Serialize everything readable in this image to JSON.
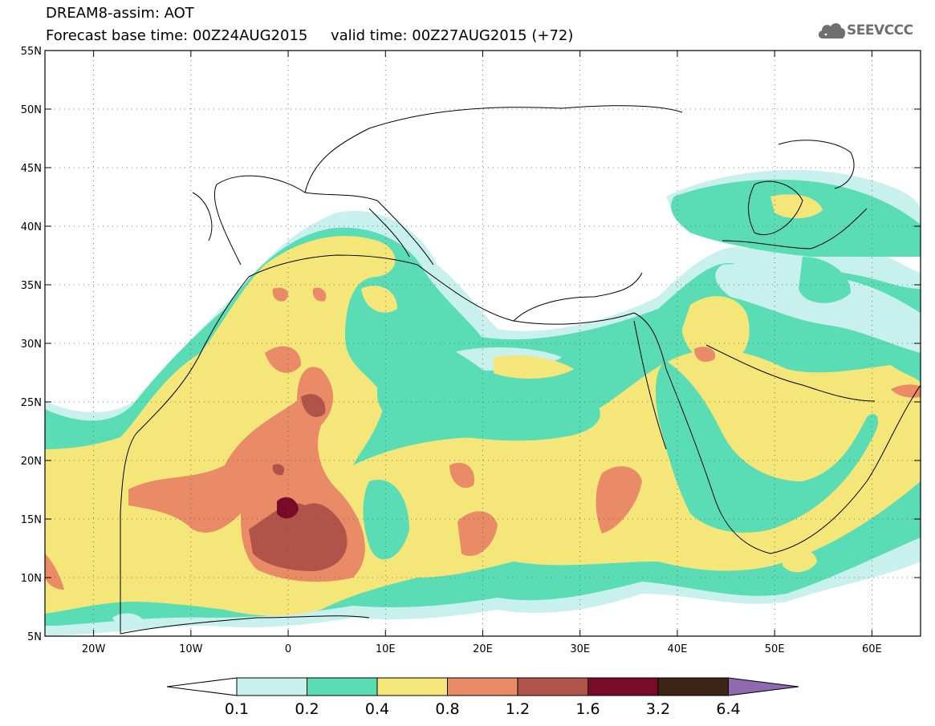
{
  "title": {
    "line1": "DREAM8-assim: AOT",
    "line2": "Forecast base time: 00Z24AUG2015     valid time: 00Z27AUG2015 (+72)"
  },
  "logo": {
    "text": "SEEVCCC",
    "icon": "cloud-icon"
  },
  "map": {
    "lon_range": [
      -25,
      65
    ],
    "lat_range": [
      5,
      55
    ],
    "lat_labels": [
      "55N",
      "50N",
      "45N",
      "40N",
      "35N",
      "30N",
      "25N",
      "20N",
      "15N",
      "10N",
      "5N"
    ],
    "lon_labels": [
      "20W",
      "10W",
      "0",
      "10E",
      "20E",
      "30E",
      "40E",
      "50E",
      "60E"
    ],
    "gridlines": "dotted"
  },
  "colorbar": {
    "labels": [
      "0.1",
      "0.2",
      "0.4",
      "0.8",
      "1.2",
      "1.6",
      "3.2",
      "6.4"
    ],
    "colors": [
      "#c8f0ec",
      "#5adcb4",
      "#f5e67a",
      "#e98b66",
      "#b0544a",
      "#7a0a2a",
      "#3e2414",
      "#8f6ab0"
    ],
    "extend": "both"
  }
}
